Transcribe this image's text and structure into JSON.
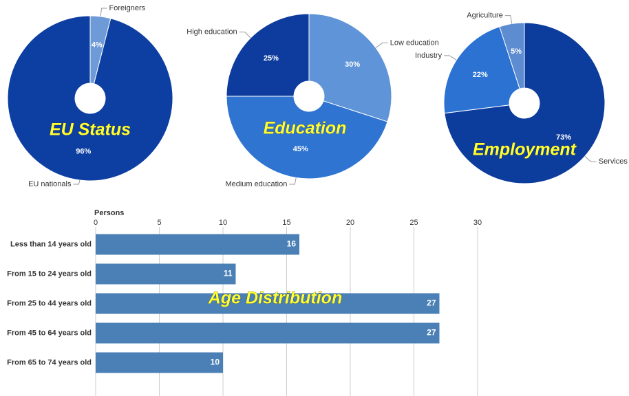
{
  "chart_data": [
    {
      "type": "pie",
      "title": "EU Status",
      "categories": [
        "Foreigners",
        "EU nationals"
      ],
      "values": [
        4,
        96
      ],
      "value_labels": [
        "4%",
        "96%"
      ],
      "colors": [
        "#6f9ad8",
        "#0d3fa3"
      ]
    },
    {
      "type": "pie",
      "title": "Education",
      "categories": [
        "Low education",
        "Medium education",
        "High education"
      ],
      "values": [
        30,
        45,
        25
      ],
      "value_labels": [
        "30%",
        "45%",
        "25%"
      ],
      "colors": [
        "#5f94d8",
        "#2f74d0",
        "#0d3c9e"
      ]
    },
    {
      "type": "pie",
      "title": "Employment",
      "categories": [
        "Services",
        "Industry",
        "Agriculture"
      ],
      "values": [
        73,
        22,
        5
      ],
      "value_labels": [
        "73%",
        "22%",
        "5%"
      ],
      "colors": [
        "#0c3c9c",
        "#2b72d2",
        "#5d8cd0"
      ]
    },
    {
      "type": "bar",
      "title": "Age Distribution",
      "x_label": "Persons",
      "categories": [
        "Less than 14 years old",
        "From 15 to 24 years old",
        "From 25 to 44 years old",
        "From 45 to 64 years old",
        "From 65 to 74 years old"
      ],
      "values": [
        16,
        11,
        27,
        27,
        10
      ],
      "color": "#4a80b6",
      "xlim": [
        0,
        30
      ],
      "xticks": [
        0,
        5,
        10,
        15,
        20,
        25,
        30
      ],
      "grid": true
    }
  ]
}
